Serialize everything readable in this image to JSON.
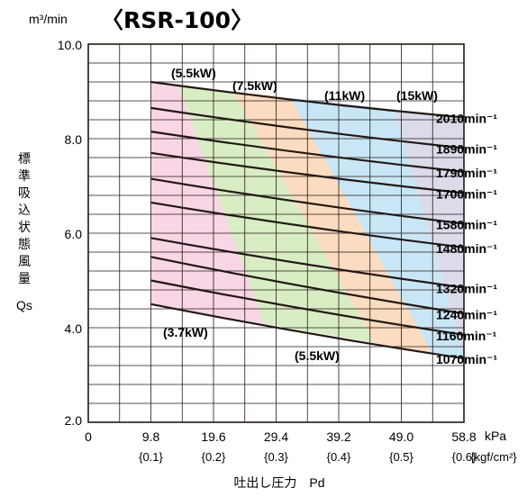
{
  "chart_data": {
    "type": "line",
    "title": "〈RSR-100〉",
    "ylabel_unit": "m³/min",
    "ylabel": [
      "標",
      "準",
      "吸",
      "込",
      "状",
      "態",
      "風",
      "量"
    ],
    "ylabel_symbol": "Qs",
    "xlabel": "吐出し圧力　Pd",
    "x_unit_1": "kPa",
    "x_unit_2": "{kgf/cm²}",
    "ylim": [
      2.0,
      10.0
    ],
    "xlim": [
      0,
      58.8
    ],
    "y_ticks": [
      "10.0",
      "8.0",
      "6.0",
      "4.0",
      "2.0"
    ],
    "x_tick_zero": "0",
    "x_ticks": [
      {
        "value": 9.8,
        "label": "9.8",
        "sub": "{0.1}"
      },
      {
        "value": 19.6,
        "label": "19.6",
        "sub": "{0.2}"
      },
      {
        "value": 29.4,
        "label": "29.4",
        "sub": "{0.3}"
      },
      {
        "value": 39.2,
        "label": "39.2",
        "sub": "{0.4}"
      },
      {
        "value": 49.0,
        "label": "49.0",
        "sub": "{0.5}"
      },
      {
        "value": 58.8,
        "label": "58.8",
        "sub": "{0.6}"
      }
    ],
    "grid": true,
    "series": [
      {
        "name": "2010min⁻¹",
        "x": [
          9.8,
          58.8
        ],
        "y": [
          9.2,
          8.45
        ]
      },
      {
        "name": "1890min⁻¹",
        "x": [
          9.8,
          58.8
        ],
        "y": [
          8.65,
          7.8
        ]
      },
      {
        "name": "1790min⁻¹",
        "x": [
          9.8,
          58.8
        ],
        "y": [
          8.15,
          7.3
        ]
      },
      {
        "name": "1700min⁻¹",
        "x": [
          9.8,
          58.8
        ],
        "y": [
          7.7,
          6.85
        ]
      },
      {
        "name": "1580min⁻¹",
        "x": [
          9.8,
          58.8
        ],
        "y": [
          7.15,
          6.2
        ]
      },
      {
        "name": "1480min⁻¹",
        "x": [
          9.8,
          58.8
        ],
        "y": [
          6.65,
          5.7
        ]
      },
      {
        "name": "1320min⁻¹",
        "x": [
          9.8,
          58.8
        ],
        "y": [
          5.9,
          4.85
        ]
      },
      {
        "name": "1240min⁻¹",
        "x": [
          9.8,
          58.8
        ],
        "y": [
          5.5,
          4.3
        ]
      },
      {
        "name": "1160min⁻¹",
        "x": [
          9.8,
          58.8
        ],
        "y": [
          5.0,
          3.85
        ]
      },
      {
        "name": "1070min⁻¹",
        "x": [
          9.8,
          58.8
        ],
        "y": [
          4.5,
          3.35
        ]
      }
    ],
    "power_regions": [
      {
        "name": "(3.7kW)",
        "color": "#f9d6e6"
      },
      {
        "name": "(5.5kW)",
        "color": "#d9edc5"
      },
      {
        "name": "(7.5kW)",
        "color": "#fcdcc0"
      },
      {
        "name": "(11kW)",
        "color": "#c9e6f6"
      },
      {
        "name": "(15kW)",
        "color": "#dcdbe9"
      }
    ],
    "region_labels": [
      "(5.5kW)",
      "(7.5kW)",
      "(11kW)",
      "(15kW)",
      "(3.7kW)",
      "(5.5kW)"
    ]
  }
}
